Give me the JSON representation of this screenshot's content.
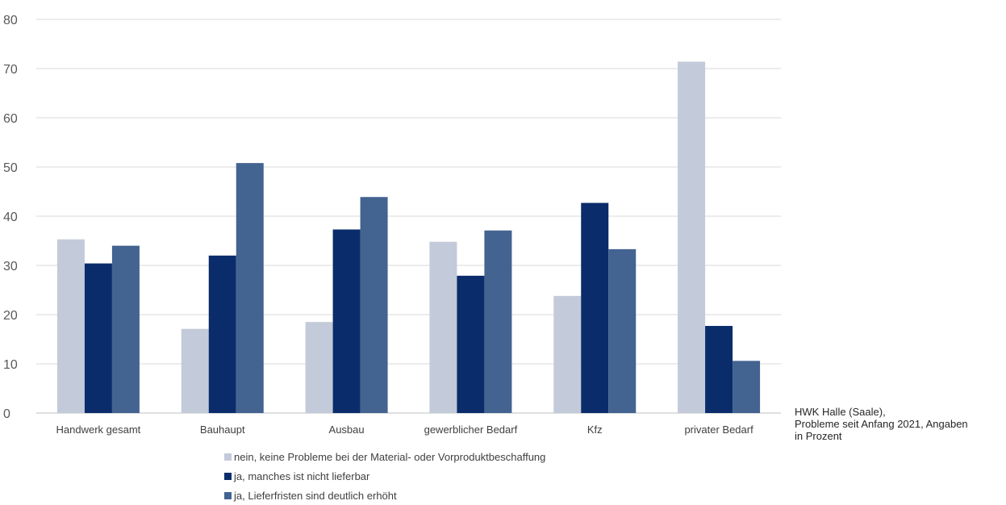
{
  "chart_data": {
    "type": "bar",
    "categories": [
      "Handwerk gesamt",
      "Bauhaupt",
      "Ausbau",
      "gewerblicher Bedarf",
      "Kfz",
      "privater Bedarf"
    ],
    "series": [
      {
        "name": "nein, keine Probleme bei der Material- oder Vorproduktbeschaffung",
        "color": "#c3cad9",
        "values": [
          35.3,
          17.1,
          18.5,
          34.8,
          23.8,
          71.4
        ]
      },
      {
        "name": "ja, manches ist nicht lieferbar",
        "color": "#0a2c6b",
        "values": [
          30.4,
          32.0,
          37.3,
          27.9,
          42.7,
          17.7
        ]
      },
      {
        "name": "ja, Lieferfristen sind deutlich erhöht",
        "color": "#436391",
        "values": [
          34.0,
          50.8,
          43.9,
          37.1,
          33.3,
          10.6
        ]
      }
    ],
    "ylim": [
      0,
      80
    ],
    "yticks": [
      0,
      10,
      20,
      30,
      40,
      50,
      60,
      70,
      80
    ],
    "grid": true,
    "legend_position": "bottom"
  },
  "source": {
    "line1": "HWK Halle (Saale),",
    "line2": "Probleme seit Anfang 2021, Angaben",
    "line3": "in Prozent"
  }
}
